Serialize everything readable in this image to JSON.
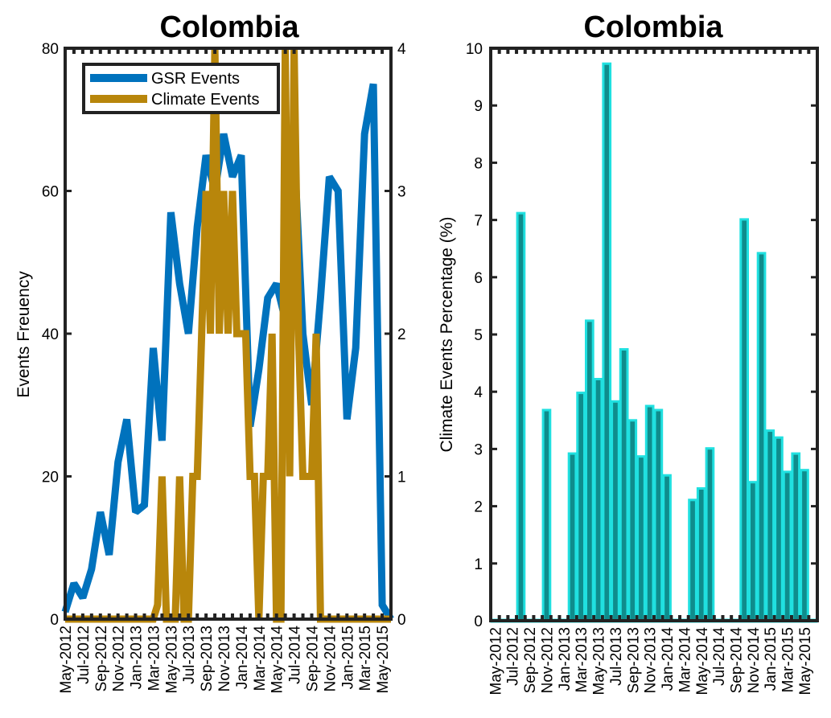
{
  "chart_data": [
    {
      "type": "line",
      "title": "Colombia",
      "ylabel": "Events Freuency",
      "ylim": [
        0,
        80
      ],
      "yticks": [
        "0",
        "20",
        "40",
        "60",
        "80"
      ],
      "ylim_right": [
        0,
        4
      ],
      "yticks_right": [
        "0",
        "1",
        "2",
        "3",
        "4"
      ],
      "xticklabels": [
        "May-2012",
        "Jul-2012",
        "Sep-2012",
        "Nov-2012",
        "Jan-2013",
        "Mar-2013",
        "May-2013",
        "Jul-2013",
        "Sep-2013",
        "Nov-2013",
        "Jan-2014",
        "Mar-2014",
        "May-2014",
        "Jul-2014",
        "Sep-2014",
        "Nov-2014",
        "Jan-2015",
        "Mar-2015",
        "May-2015"
      ],
      "legend_position": "top-left",
      "colors": {
        "gsr": "#0072BD",
        "climate": "#B8860B"
      },
      "series": [
        {
          "name": "GSR Events",
          "axis": "left",
          "x": [
            0,
            1,
            2,
            3,
            4,
            5,
            6,
            7,
            8,
            9,
            10,
            11,
            12,
            13,
            14,
            15,
            16,
            17,
            18,
            19,
            20,
            21,
            22,
            23,
            24,
            25,
            26,
            27,
            28,
            29,
            30,
            31,
            32,
            33,
            34,
            35,
            36,
            37
          ],
          "values": [
            1,
            5,
            3,
            7,
            15,
            9,
            22,
            28,
            15,
            16,
            38,
            25,
            57,
            47,
            40,
            55,
            65,
            60,
            68,
            62,
            65,
            27,
            35,
            45,
            47,
            42,
            66,
            40,
            30,
            45,
            62,
            60,
            28,
            38,
            68,
            75,
            2,
            0
          ]
        },
        {
          "name": "Climate Events",
          "axis": "right",
          "x": [
            0,
            1,
            2,
            3,
            4,
            5,
            6,
            7,
            8,
            9,
            10,
            10.5,
            11,
            11.5,
            12,
            12.5,
            13,
            13.5,
            14,
            14.5,
            15,
            15.5,
            16,
            16.5,
            17,
            17.5,
            18,
            18.5,
            19,
            19.5,
            20,
            20.5,
            21,
            21.5,
            22,
            22.5,
            23,
            23.5,
            24,
            24.5,
            25,
            25.5,
            26,
            26.5,
            27,
            27.5,
            28,
            28.5,
            29,
            29.5,
            30,
            30.5,
            31,
            31.5,
            32,
            33,
            34,
            35,
            36,
            37
          ],
          "values": [
            0,
            0,
            0,
            0,
            0,
            0,
            0,
            0,
            0,
            0,
            0,
            0.1,
            1,
            0,
            0,
            0,
            1,
            0,
            0,
            1,
            1,
            2,
            3,
            2,
            4,
            2,
            3,
            2,
            3,
            2,
            2,
            2,
            1,
            1,
            0,
            1,
            1,
            2,
            0,
            0,
            4,
            1,
            4,
            2,
            1,
            1,
            1,
            2,
            0,
            0,
            0,
            0,
            0,
            0,
            0,
            0,
            0,
            0,
            0,
            0
          ]
        }
      ]
    },
    {
      "type": "bar",
      "title": "Colombia",
      "ylabel": "Climate Events Percentage (%)",
      "ylim": [
        0,
        10
      ],
      "yticks": [
        "0",
        "1",
        "2",
        "3",
        "4",
        "5",
        "6",
        "7",
        "8",
        "9",
        "10"
      ],
      "xticklabels": [
        "May-2012",
        "Jul-2012",
        "Sep-2012",
        "Nov-2012",
        "Jan-2013",
        "Mar-2013",
        "May-2013",
        "Jul-2013",
        "Sep-2013",
        "Nov-2013",
        "Jan-2014",
        "Mar-2014",
        "May-2014",
        "Jul-2014",
        "Sep-2014",
        "Nov-2014",
        "Jan-2015",
        "Mar-2015",
        "May-2015"
      ],
      "colors": {
        "fill": "#0F8C8C",
        "edge": "#20E0E0"
      },
      "values": [
        0,
        0,
        0,
        7.12,
        0,
        0,
        3.68,
        0,
        0,
        2.92,
        3.98,
        5.24,
        4.22,
        9.73,
        3.83,
        4.74,
        3.5,
        2.87,
        3.75,
        3.68,
        2.54,
        0,
        0,
        2.11,
        2.31,
        3.01,
        0,
        0,
        0,
        7.01,
        2.42,
        6.42,
        3.32,
        3.2,
        2.6,
        2.92,
        2.63,
        0
      ]
    }
  ]
}
